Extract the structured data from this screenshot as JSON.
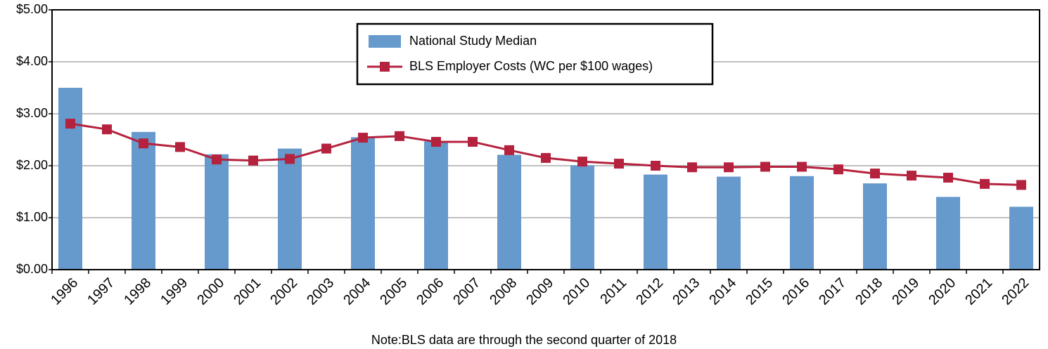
{
  "chart_data": {
    "type": "combo",
    "note": "Note:BLS data are through the second quarter of 2018",
    "categories": [
      "1996",
      "1997",
      "1998",
      "1999",
      "2000",
      "2001",
      "2002",
      "2003",
      "2004",
      "2005",
      "2006",
      "2007",
      "2008",
      "2009",
      "2010",
      "2011",
      "2012",
      "2013",
      "2014",
      "2015",
      "2016",
      "2017",
      "2018",
      "2019",
      "2020",
      "2021",
      "2022"
    ],
    "series": [
      {
        "name": "National Study Median",
        "type": "bar",
        "color": "#6699cc",
        "values": [
          3.5,
          null,
          2.65,
          null,
          2.22,
          null,
          2.33,
          null,
          2.55,
          null,
          2.47,
          null,
          2.21,
          null,
          2.01,
          null,
          1.83,
          null,
          1.79,
          null,
          1.8,
          null,
          1.66,
          null,
          1.4,
          null,
          1.21
        ]
      },
      {
        "name": "BLS Employer Costs (WC per $100 wages)",
        "type": "line",
        "color": "#b5223e",
        "values": [
          2.81,
          2.7,
          2.43,
          2.36,
          2.12,
          2.1,
          2.13,
          2.33,
          2.54,
          2.57,
          2.46,
          2.46,
          2.3,
          2.15,
          2.08,
          2.04,
          2.0,
          1.97,
          1.97,
          1.98,
          1.98,
          1.93,
          1.85,
          1.81,
          1.77,
          1.65,
          1.63
        ]
      }
    ],
    "ylim": [
      0,
      5
    ],
    "yticks": [
      {
        "value": 0,
        "label": "$0.00"
      },
      {
        "value": 1,
        "label": "$1.00"
      },
      {
        "value": 2,
        "label": "$2.00"
      },
      {
        "value": 3,
        "label": "$3.00"
      },
      {
        "value": 4,
        "label": "$4.00"
      },
      {
        "value": 5,
        "label": "$5.00"
      }
    ],
    "grid": true,
    "legend": "top"
  }
}
